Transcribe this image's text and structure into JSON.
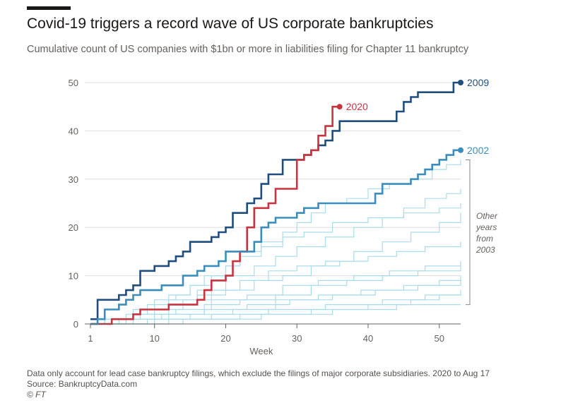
{
  "header": {
    "title": "Covid-19 triggers a record wave of US corporate bankruptcies",
    "subtitle": "Cumulative count of US companies with $1bn or more in liabilities filing for Chapter 11 bankruptcy"
  },
  "footer": {
    "note": "Data only account for lead case bankruptcy filings, which exclude the filings of major corporate subsidiaries. 2020 to Aug 17",
    "source": "Source: BankruptcyData.com",
    "copyright": "© FT"
  },
  "colors": {
    "y2009": "#1f4e7e",
    "y2020": "#c8333f",
    "y2002": "#3a8dbd",
    "other": "#a9dcea",
    "grid": "#e0dcd8",
    "axis": "#66605c"
  },
  "chart_data": {
    "type": "line",
    "step": true,
    "xlabel": "Week",
    "ylabel": "",
    "xlim": [
      1,
      53
    ],
    "ylim": [
      0,
      50
    ],
    "xticks": [
      "1",
      "10",
      "20",
      "30",
      "40",
      "50"
    ],
    "yticks": [
      "0",
      "10",
      "20",
      "30",
      "40",
      "50"
    ],
    "grid": true,
    "bracket_label": [
      "Other",
      "years",
      "from",
      "2003"
    ],
    "series": [
      {
        "name": "2009",
        "kind": "highlight",
        "color": "#1f4e7e",
        "points": [
          [
            1,
            1
          ],
          [
            2,
            5
          ],
          [
            4,
            5
          ],
          [
            5,
            6
          ],
          [
            6,
            7
          ],
          [
            7,
            8
          ],
          [
            8,
            11
          ],
          [
            10,
            12
          ],
          [
            12,
            13
          ],
          [
            13,
            14
          ],
          [
            14,
            15
          ],
          [
            15,
            17
          ],
          [
            18,
            18
          ],
          [
            19,
            19
          ],
          [
            20,
            20
          ],
          [
            21,
            23
          ],
          [
            23,
            25
          ],
          [
            24,
            26
          ],
          [
            25,
            29
          ],
          [
            26,
            31
          ],
          [
            28,
            34
          ],
          [
            30,
            34
          ],
          [
            31,
            35
          ],
          [
            32,
            36
          ],
          [
            33,
            37
          ],
          [
            34,
            38
          ],
          [
            35,
            40
          ],
          [
            36,
            42
          ],
          [
            37,
            42
          ],
          [
            43,
            42
          ],
          [
            44,
            44
          ],
          [
            45,
            46
          ],
          [
            46,
            47
          ],
          [
            47,
            48
          ],
          [
            48,
            48
          ],
          [
            52,
            50
          ],
          [
            53,
            50
          ]
        ]
      },
      {
        "name": "2020",
        "kind": "highlight",
        "color": "#c8333f",
        "points": [
          [
            1,
            0
          ],
          [
            3,
            0
          ],
          [
            4,
            1
          ],
          [
            6,
            1
          ],
          [
            7,
            2
          ],
          [
            8,
            3
          ],
          [
            11,
            3
          ],
          [
            12,
            4
          ],
          [
            15,
            4
          ],
          [
            16,
            5
          ],
          [
            17,
            7
          ],
          [
            18,
            9
          ],
          [
            20,
            10
          ],
          [
            21,
            13
          ],
          [
            22,
            15
          ],
          [
            23,
            20
          ],
          [
            24,
            24
          ],
          [
            25,
            24
          ],
          [
            26,
            25
          ],
          [
            27,
            28
          ],
          [
            29,
            28
          ],
          [
            30,
            34
          ],
          [
            31,
            35
          ],
          [
            32,
            36
          ],
          [
            33,
            39
          ],
          [
            34,
            41
          ],
          [
            35,
            45
          ],
          [
            36,
            45
          ]
        ]
      },
      {
        "name": "2002",
        "kind": "highlight",
        "color": "#3a8dbd",
        "points": [
          [
            1,
            0
          ],
          [
            2,
            1
          ],
          [
            3,
            3
          ],
          [
            5,
            4
          ],
          [
            6,
            5
          ],
          [
            7,
            6
          ],
          [
            8,
            7
          ],
          [
            10,
            7
          ],
          [
            11,
            8
          ],
          [
            13,
            8
          ],
          [
            14,
            10
          ],
          [
            16,
            11
          ],
          [
            17,
            12
          ],
          [
            19,
            13
          ],
          [
            20,
            15
          ],
          [
            23,
            15
          ],
          [
            24,
            17
          ],
          [
            25,
            20
          ],
          [
            26,
            21
          ],
          [
            27,
            22
          ],
          [
            28,
            22
          ],
          [
            30,
            23
          ],
          [
            31,
            24
          ],
          [
            33,
            25
          ],
          [
            40,
            25
          ],
          [
            41,
            27
          ],
          [
            42,
            29
          ],
          [
            45,
            29
          ],
          [
            46,
            30
          ],
          [
            47,
            31
          ],
          [
            48,
            32
          ],
          [
            49,
            33
          ],
          [
            50,
            34
          ],
          [
            51,
            35
          ],
          [
            52,
            36
          ],
          [
            53,
            36
          ]
        ]
      },
      {
        "kind": "other",
        "points": [
          [
            1,
            0
          ],
          [
            4,
            1
          ],
          [
            7,
            3
          ],
          [
            10,
            5
          ],
          [
            13,
            6
          ],
          [
            15,
            8
          ],
          [
            18,
            10
          ],
          [
            20,
            12
          ],
          [
            22,
            15
          ],
          [
            25,
            17
          ],
          [
            28,
            19
          ],
          [
            30,
            21
          ],
          [
            32,
            23
          ],
          [
            34,
            25
          ],
          [
            37,
            26
          ],
          [
            40,
            28
          ],
          [
            43,
            29
          ],
          [
            46,
            30
          ],
          [
            49,
            32
          ],
          [
            51,
            33
          ],
          [
            53,
            34
          ]
        ]
      },
      {
        "kind": "other",
        "points": [
          [
            1,
            0
          ],
          [
            3,
            1
          ],
          [
            6,
            2
          ],
          [
            9,
            4
          ],
          [
            12,
            6
          ],
          [
            15,
            8
          ],
          [
            17,
            10
          ],
          [
            20,
            12
          ],
          [
            22,
            14
          ],
          [
            25,
            16
          ],
          [
            28,
            18
          ],
          [
            31,
            19
          ],
          [
            35,
            21
          ],
          [
            40,
            22
          ],
          [
            45,
            23
          ],
          [
            50,
            24
          ],
          [
            53,
            25
          ]
        ]
      },
      {
        "kind": "other",
        "points": [
          [
            1,
            0
          ],
          [
            5,
            1
          ],
          [
            8,
            3
          ],
          [
            12,
            5
          ],
          [
            16,
            7
          ],
          [
            20,
            10
          ],
          [
            24,
            12
          ],
          [
            27,
            14
          ],
          [
            30,
            16
          ],
          [
            34,
            18
          ],
          [
            38,
            20
          ],
          [
            42,
            22
          ],
          [
            45,
            24
          ],
          [
            48,
            26
          ],
          [
            51,
            27
          ],
          [
            53,
            28
          ]
        ]
      },
      {
        "kind": "other",
        "points": [
          [
            1,
            0
          ],
          [
            6,
            1
          ],
          [
            10,
            3
          ],
          [
            14,
            5
          ],
          [
            18,
            7
          ],
          [
            22,
            9
          ],
          [
            26,
            11
          ],
          [
            30,
            12
          ],
          [
            34,
            13
          ],
          [
            38,
            15
          ],
          [
            42,
            17
          ],
          [
            46,
            19
          ],
          [
            50,
            21
          ],
          [
            53,
            23
          ]
        ]
      },
      {
        "kind": "other",
        "points": [
          [
            1,
            0
          ],
          [
            4,
            1
          ],
          [
            8,
            2
          ],
          [
            12,
            4
          ],
          [
            16,
            6
          ],
          [
            20,
            7
          ],
          [
            24,
            9
          ],
          [
            28,
            10
          ],
          [
            32,
            12
          ],
          [
            36,
            13
          ],
          [
            40,
            14
          ],
          [
            44,
            15
          ],
          [
            48,
            16
          ],
          [
            53,
            17
          ]
        ]
      },
      {
        "kind": "other",
        "points": [
          [
            1,
            0
          ],
          [
            7,
            1
          ],
          [
            12,
            2
          ],
          [
            17,
            4
          ],
          [
            22,
            5
          ],
          [
            27,
            6
          ],
          [
            32,
            8
          ],
          [
            37,
            9
          ],
          [
            42,
            10
          ],
          [
            47,
            11
          ],
          [
            53,
            12
          ]
        ]
      },
      {
        "kind": "other",
        "points": [
          [
            1,
            0
          ],
          [
            9,
            1
          ],
          [
            15,
            2
          ],
          [
            21,
            3
          ],
          [
            27,
            5
          ],
          [
            33,
            6
          ],
          [
            39,
            7
          ],
          [
            45,
            8
          ],
          [
            50,
            9
          ],
          [
            53,
            10
          ]
        ]
      },
      {
        "kind": "other",
        "points": [
          [
            1,
            0
          ],
          [
            10,
            1
          ],
          [
            18,
            2
          ],
          [
            26,
            3
          ],
          [
            34,
            4
          ],
          [
            42,
            5
          ],
          [
            48,
            6
          ],
          [
            53,
            7
          ]
        ]
      },
      {
        "kind": "other",
        "points": [
          [
            1,
            0
          ],
          [
            14,
            1
          ],
          [
            25,
            2
          ],
          [
            35,
            3
          ],
          [
            44,
            4
          ],
          [
            53,
            4
          ]
        ]
      },
      {
        "kind": "other",
        "points": [
          [
            1,
            0
          ],
          [
            3,
            1
          ],
          [
            8,
            2
          ],
          [
            13,
            3
          ],
          [
            18,
            5
          ],
          [
            23,
            6
          ],
          [
            28,
            8
          ],
          [
            33,
            9
          ],
          [
            38,
            10
          ],
          [
            43,
            11
          ],
          [
            48,
            12
          ],
          [
            53,
            13
          ]
        ]
      },
      {
        "kind": "other",
        "points": [
          [
            1,
            0
          ],
          [
            5,
            1
          ],
          [
            11,
            2
          ],
          [
            17,
            3
          ],
          [
            23,
            4
          ],
          [
            29,
            5
          ],
          [
            35,
            6
          ],
          [
            41,
            7
          ],
          [
            47,
            8
          ],
          [
            53,
            9
          ]
        ]
      },
      {
        "kind": "other",
        "points": [
          [
            1,
            0
          ],
          [
            12,
            1
          ],
          [
            22,
            2
          ],
          [
            32,
            3
          ],
          [
            40,
            4
          ],
          [
            46,
            5
          ],
          [
            50,
            6
          ],
          [
            53,
            6
          ]
        ]
      }
    ]
  }
}
